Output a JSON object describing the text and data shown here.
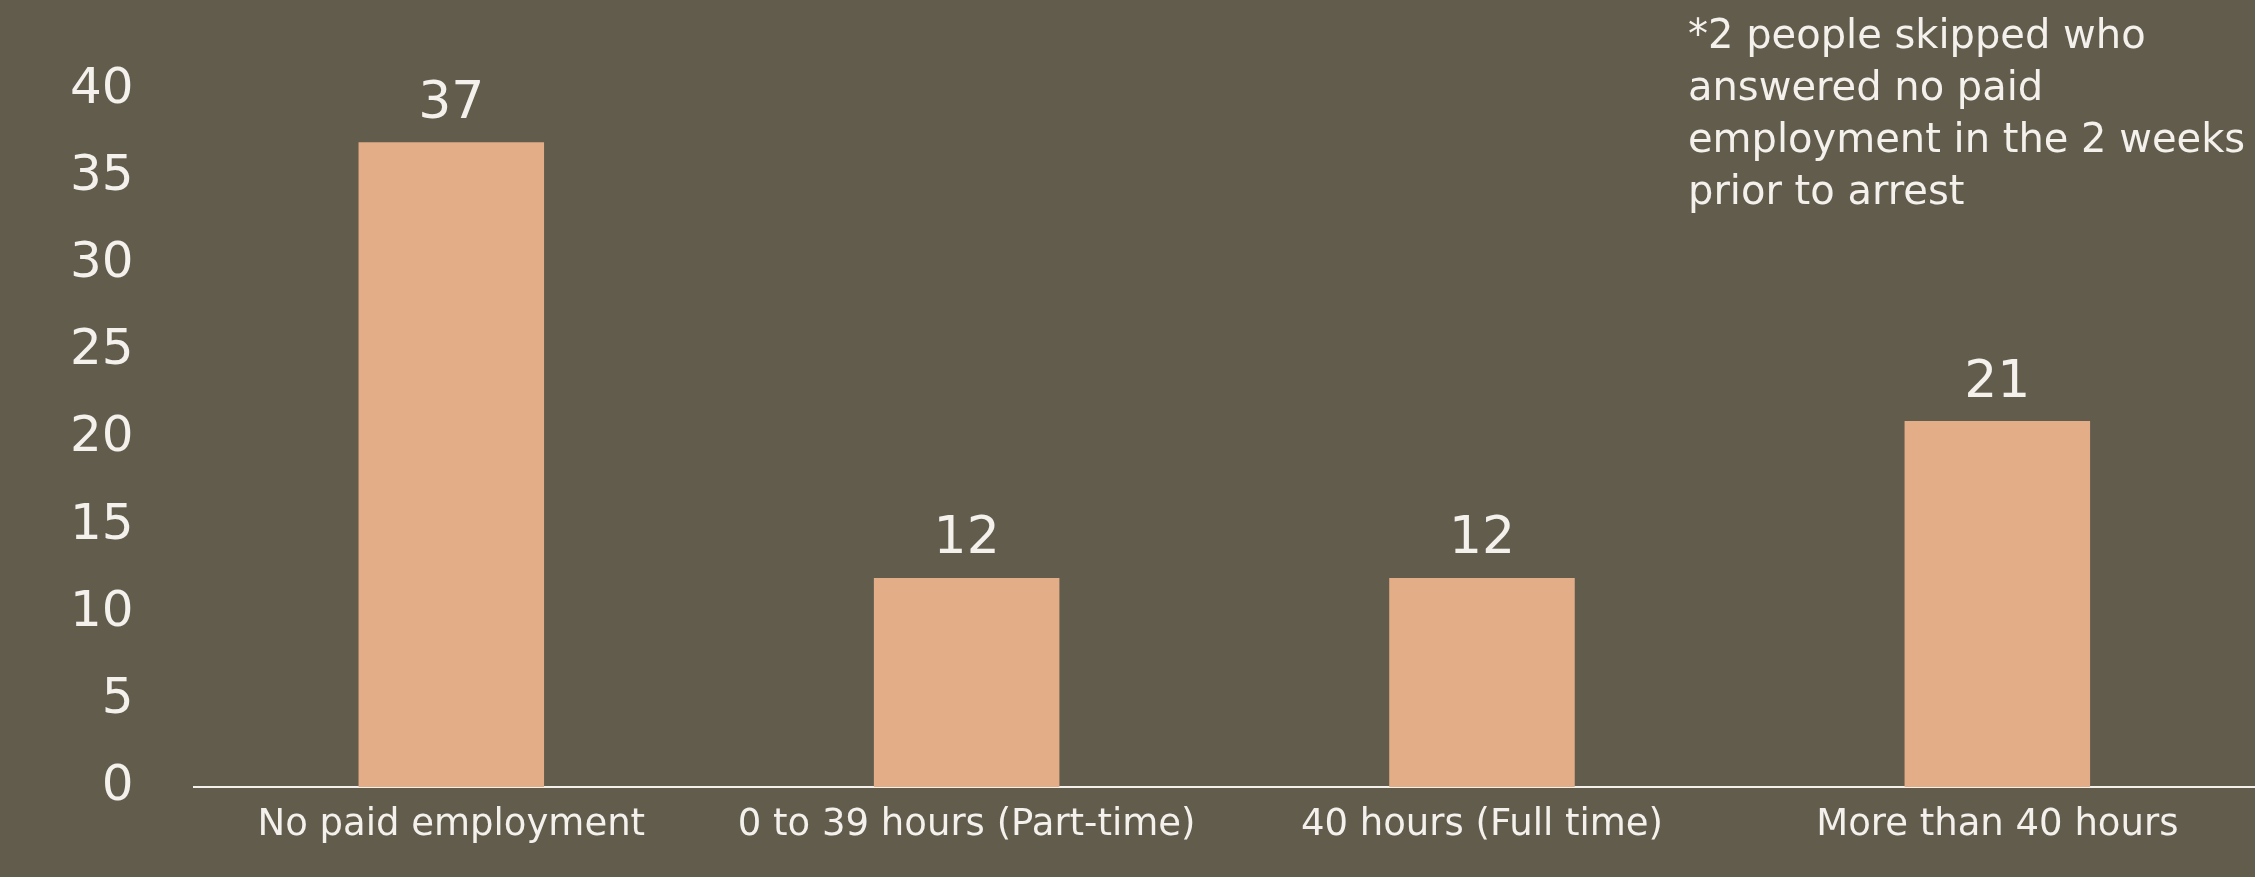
{
  "chart_data": {
    "type": "bar",
    "categories": [
      "No paid employment",
      "0 to 39 hours (Part-time)",
      "40 hours (Full time)",
      "More than 40 hours"
    ],
    "values": [
      37,
      12,
      12,
      21
    ],
    "color": "#e3ad87",
    "ylim": [
      0,
      40
    ],
    "yticks": [
      0,
      5,
      10,
      15,
      20,
      25,
      30,
      35,
      40
    ],
    "grid": false,
    "legend": false,
    "data_labels": true,
    "annotations": [
      "*2 people skipped who answered no paid employment in the 2 weeks prior to arrest"
    ]
  }
}
